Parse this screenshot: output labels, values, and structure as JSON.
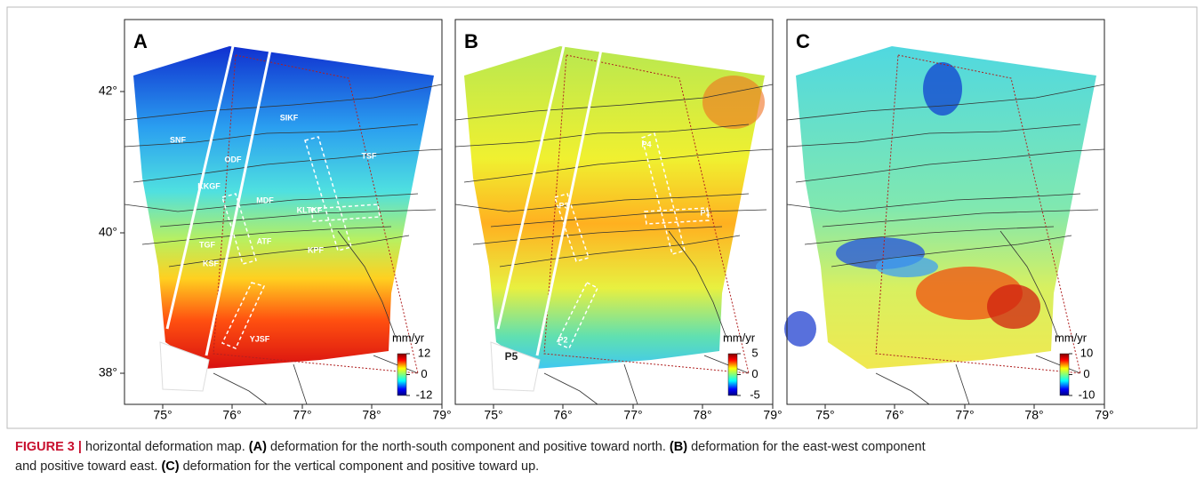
{
  "panels": [
    {
      "label": "A",
      "x_ticks": [
        "75°",
        "76°",
        "77°",
        "78°",
        "79°"
      ],
      "y_ticks": [
        "42°",
        "40°",
        "38°"
      ],
      "annotations": [
        "SIKF",
        "SNF",
        "ODF",
        "TSF",
        "KKGF",
        "MDF",
        "KLTKF",
        "TGF",
        "ATF",
        "KPF",
        "KSF",
        "YJSF"
      ],
      "colorbar": {
        "unit": "mm/yr",
        "ticks": [
          "12",
          "0",
          "-12"
        ]
      }
    },
    {
      "label": "B",
      "x_ticks": [
        "75°",
        "76°",
        "77°",
        "78°",
        "79°"
      ],
      "annotations": [
        "P4",
        "P3",
        "P1",
        "P2",
        "P5"
      ],
      "colorbar": {
        "unit": "mm/yr",
        "ticks": [
          "5",
          "0",
          "-5"
        ]
      }
    },
    {
      "label": "C",
      "x_ticks": [
        "75°",
        "76°",
        "77°",
        "78°",
        "79°"
      ],
      "colorbar": {
        "unit": "mm/yr",
        "ticks": [
          "10",
          "0",
          "-10"
        ]
      }
    }
  ],
  "caption": {
    "figure": "FIGURE 3 |",
    "title": "horizontal deformation map.",
    "parts": [
      {
        "label": "(A)",
        "text": "deformation for the north-south component and positive toward north."
      },
      {
        "label": "(B)",
        "text": "deformation for the east-west component"
      },
      {
        "text": "and positive toward east."
      },
      {
        "label": "(C)",
        "text": "deformation for the vertical component and positive toward up."
      }
    ]
  }
}
